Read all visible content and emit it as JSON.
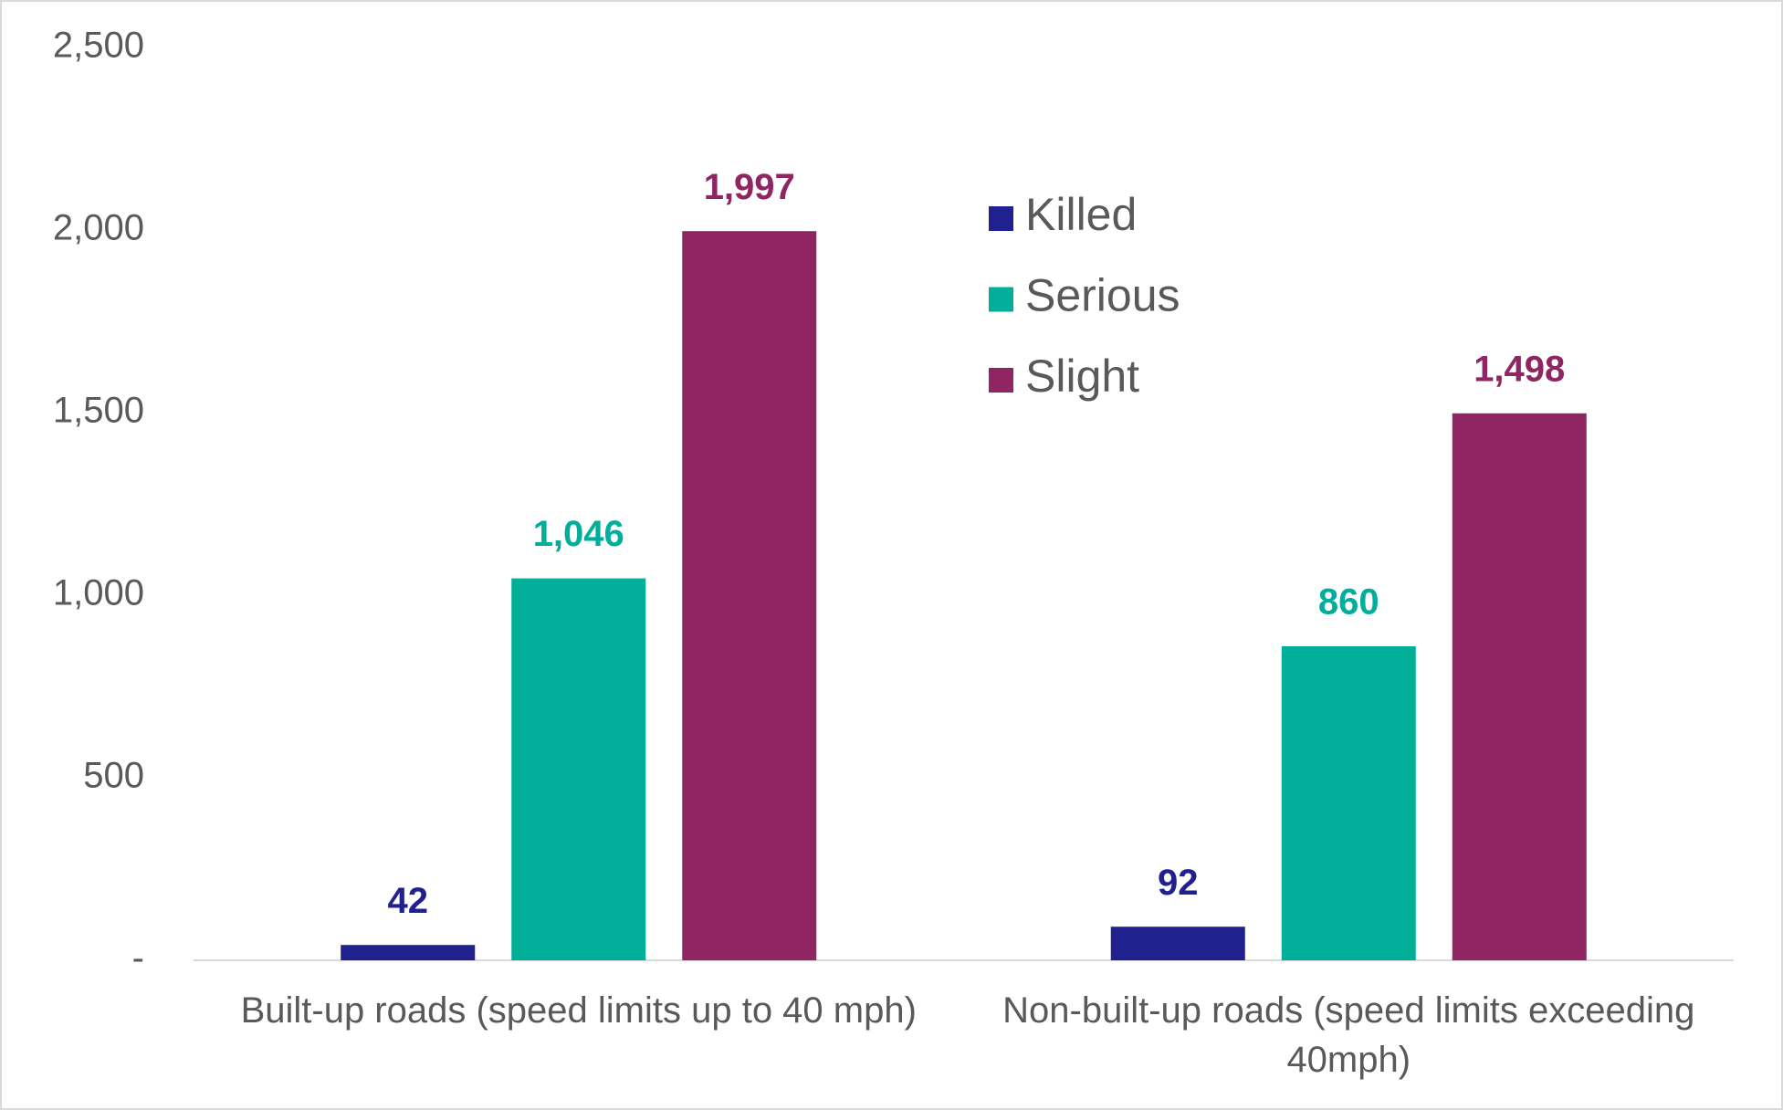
{
  "chart_data": {
    "type": "bar",
    "categories": [
      "Built-up roads (speed limits up to 40 mph)",
      "Non-built-up roads (speed limits exceeding 40mph)"
    ],
    "series": [
      {
        "name": "Killed",
        "color": "#20208f",
        "values": [
          42,
          92
        ]
      },
      {
        "name": "Serious",
        "color": "#00ae9a",
        "values": [
          1046,
          860
        ],
        "value_labels": [
          "1,046",
          "860"
        ]
      },
      {
        "name": "Slight",
        "color": "#8f2563",
        "values": [
          1997,
          1498
        ],
        "value_labels": [
          "1,997",
          "1,498"
        ]
      }
    ],
    "ylim": [
      0,
      2500
    ],
    "yticks": [
      {
        "value": 0,
        "label": "-"
      },
      500,
      {
        "value": 1000,
        "label": "1,000"
      },
      {
        "value": 1500,
        "label": "1,500"
      },
      {
        "value": 2000,
        "label": "2,000"
      },
      {
        "value": 2500,
        "label": "2,500"
      }
    ]
  }
}
